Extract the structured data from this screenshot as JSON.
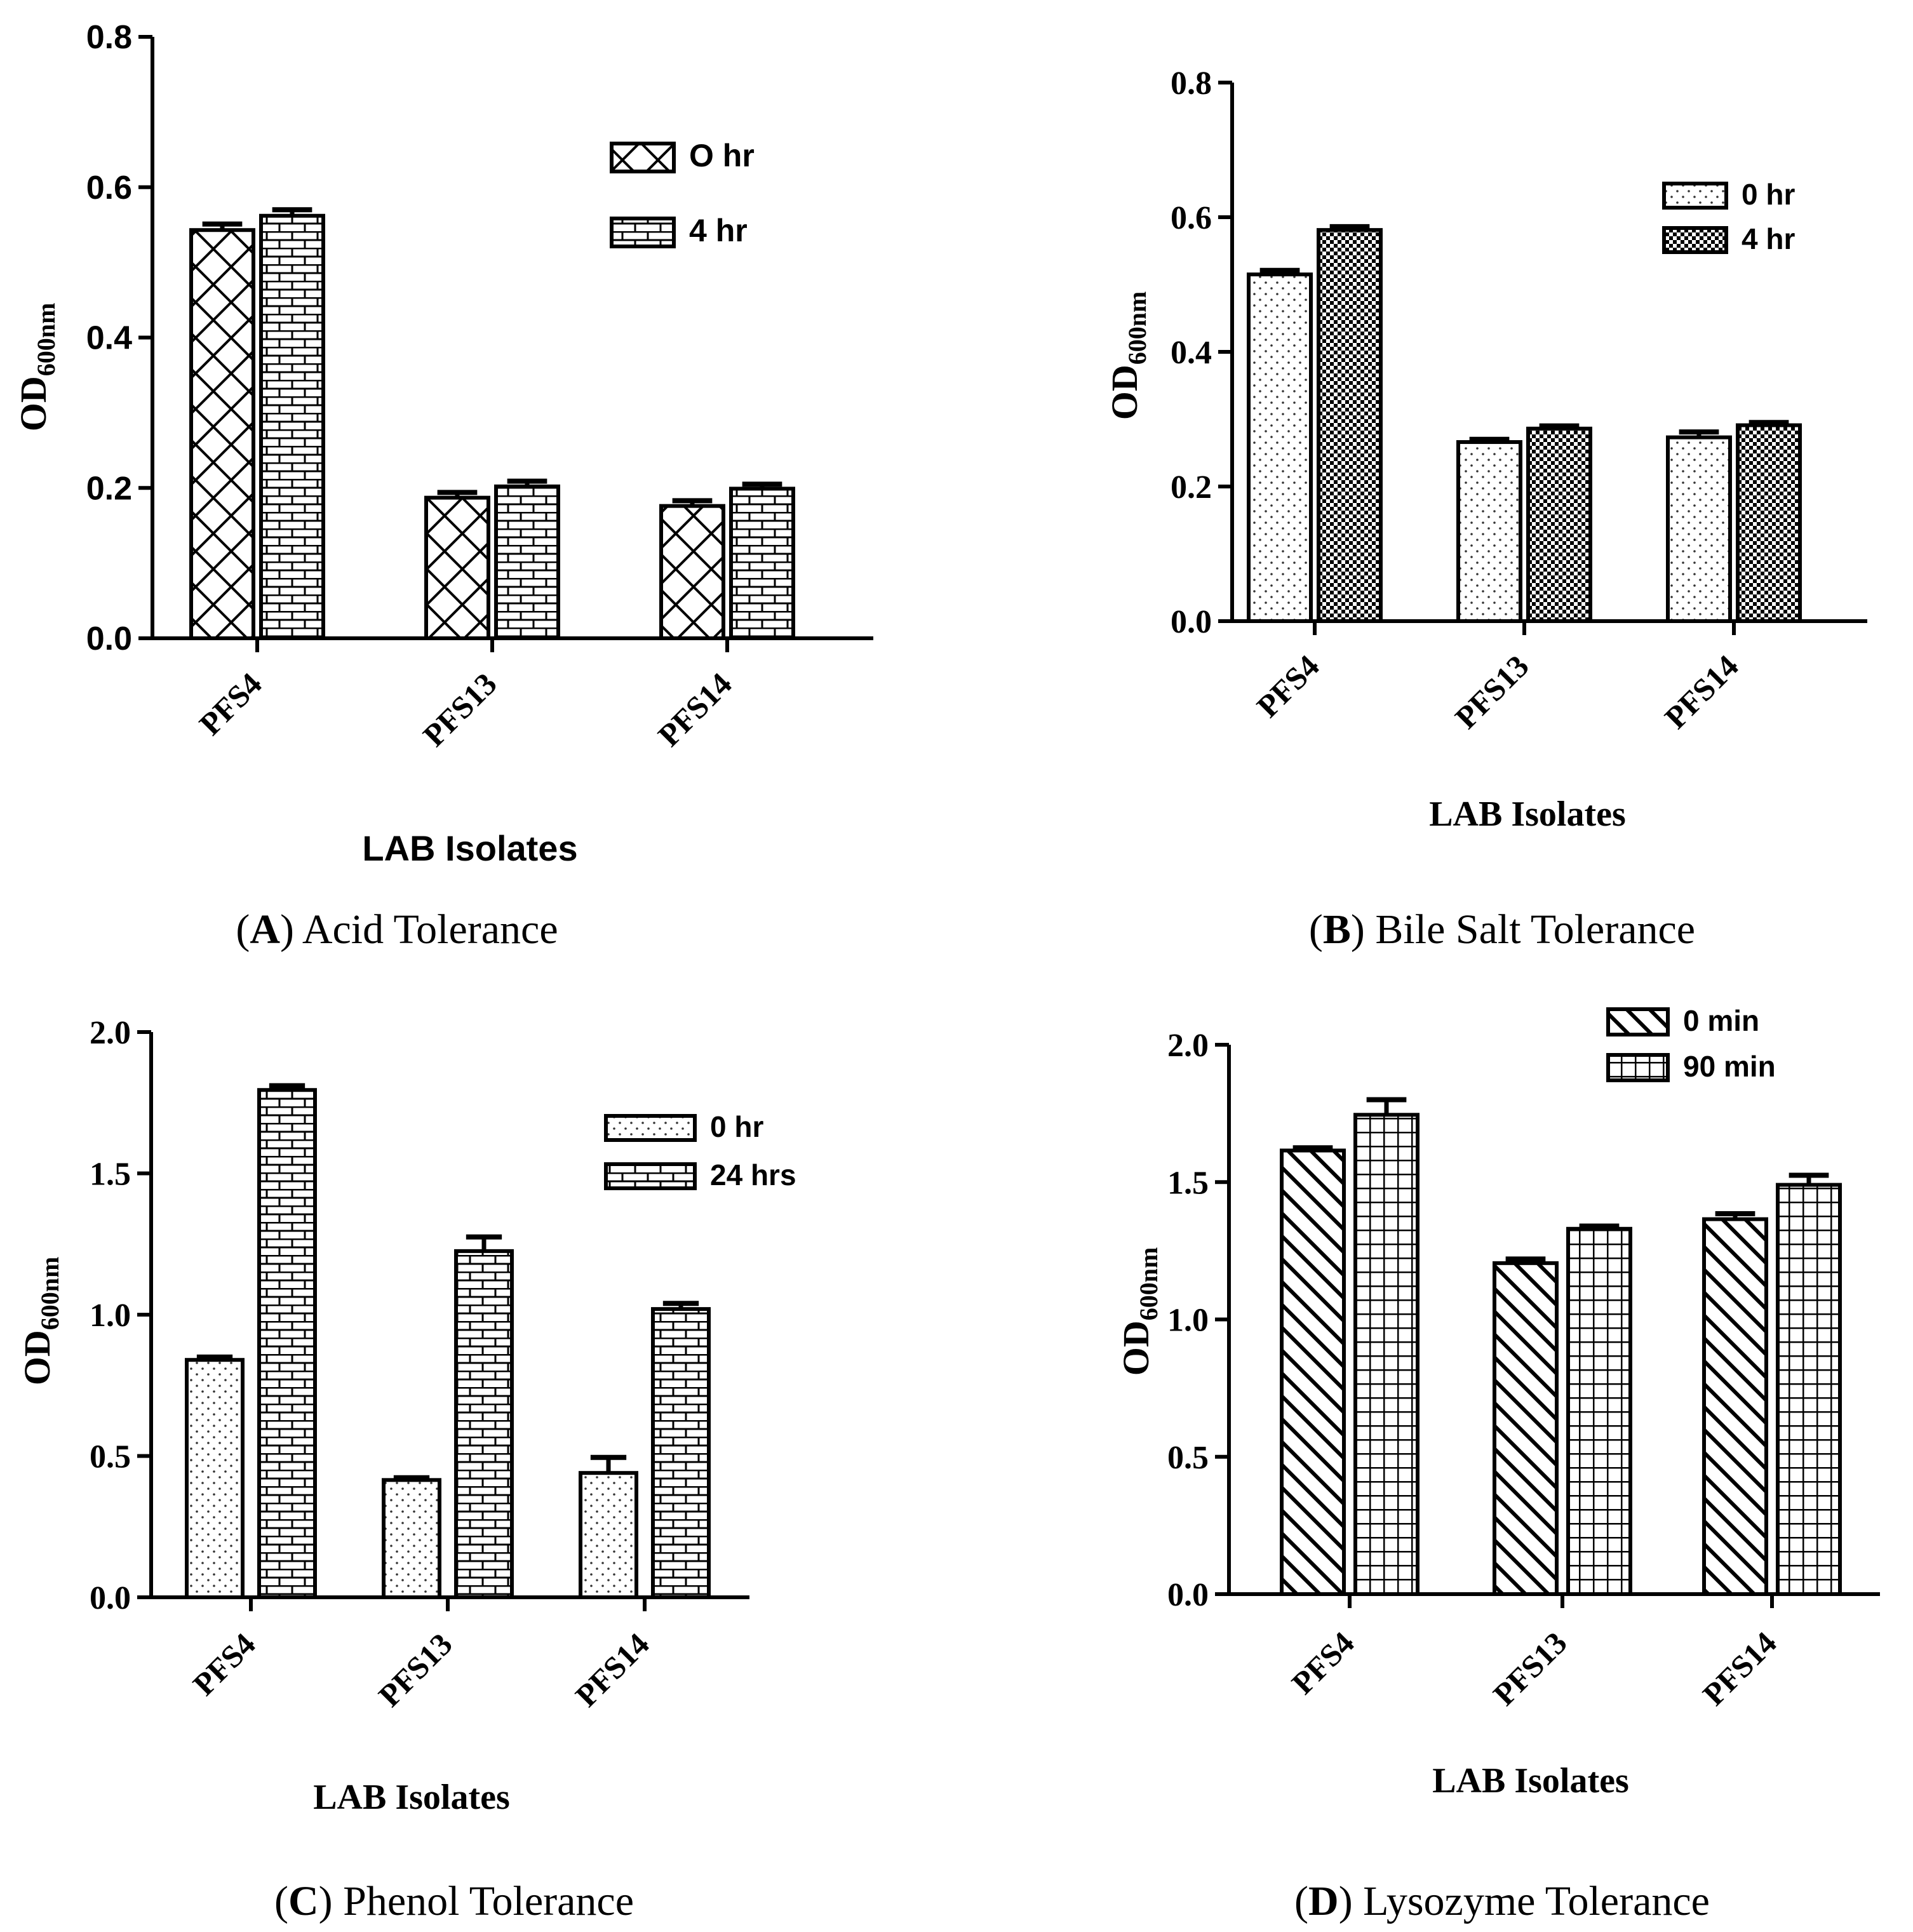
{
  "chart_data": [
    {
      "type": "bar",
      "panel": "A",
      "caption_letter": "A",
      "caption_text": "Acid Tolerance",
      "ylabel_main": "OD",
      "ylabel_sub": "600nm",
      "xlabel": "LAB Isolates",
      "ylim": [
        0,
        0.8
      ],
      "yticks": [
        0.0,
        0.2,
        0.4,
        0.6,
        0.8
      ],
      "ytick_labels": [
        "0.0",
        "0.2",
        "0.4",
        "0.6",
        "0.8"
      ],
      "categories": [
        "PFS4",
        "PFS13",
        "PFS14"
      ],
      "series": [
        {
          "name": "O hr",
          "pattern": "crosshatch",
          "values": [
            0.543,
            0.187,
            0.176
          ],
          "errors": [
            0.008,
            0.007,
            0.007
          ]
        },
        {
          "name": "4 hr",
          "pattern": "brick",
          "values": [
            0.562,
            0.202,
            0.199
          ],
          "errors": [
            0.008,
            0.007,
            0.006
          ]
        }
      ]
    },
    {
      "type": "bar",
      "panel": "B",
      "caption_letter": "B",
      "caption_text": "Bile Salt Tolerance",
      "ylabel_main": "OD",
      "ylabel_sub": "600nm",
      "xlabel": "LAB Isolates",
      "ylim": [
        0,
        0.8
      ],
      "yticks": [
        0.0,
        0.2,
        0.4,
        0.6,
        0.8
      ],
      "ytick_labels": [
        "0.0",
        "0.2",
        "0.4",
        "0.6",
        "0.8"
      ],
      "categories": [
        "PFS4",
        "PFS13",
        "PFS14"
      ],
      "series": [
        {
          "name": "0 hr",
          "pattern": "dots",
          "values": [
            0.515,
            0.266,
            0.273
          ],
          "errors": [
            0.006,
            0.004,
            0.008
          ]
        },
        {
          "name": "4 hr",
          "pattern": "checker",
          "values": [
            0.581,
            0.286,
            0.291
          ],
          "errors": [
            0.005,
            0.004,
            0.004
          ]
        }
      ]
    },
    {
      "type": "bar",
      "panel": "C",
      "caption_letter": "C",
      "caption_text": "Phenol Tolerance",
      "ylabel_main": "OD",
      "ylabel_sub": "600nm",
      "xlabel": "LAB Isolates",
      "ylim": [
        0,
        2.0
      ],
      "yticks": [
        0.0,
        0.5,
        1.0,
        1.5,
        2.0
      ],
      "ytick_labels": [
        "0.0",
        "0.5",
        "1.0",
        "1.5",
        "2.0"
      ],
      "categories": [
        "PFS4",
        "PFS13",
        "PFS14"
      ],
      "series": [
        {
          "name": "0 hr",
          "pattern": "dots",
          "values": [
            0.84,
            0.415,
            0.44
          ],
          "errors": [
            0.01,
            0.008,
            0.055
          ]
        },
        {
          "name": "24 hrs",
          "pattern": "brick",
          "values": [
            1.795,
            1.225,
            1.02
          ],
          "errors": [
            0.015,
            0.05,
            0.02
          ]
        }
      ]
    },
    {
      "type": "bar",
      "panel": "D",
      "caption_letter": "D",
      "caption_text": "Lysozyme Tolerance",
      "ylabel_main": "OD",
      "ylabel_sub": "600nm",
      "xlabel": "LAB Isolates",
      "ylim": [
        0,
        2.0
      ],
      "yticks": [
        0.0,
        0.5,
        1.0,
        1.5,
        2.0
      ],
      "ytick_labels": [
        "0.0",
        "0.5",
        "1.0",
        "1.5",
        "2.0"
      ],
      "categories": [
        "PFS4",
        "PFS13",
        "PFS14"
      ],
      "series": [
        {
          "name": "0 min",
          "pattern": "diagonal",
          "values": [
            1.615,
            1.205,
            1.365
          ],
          "errors": [
            0.01,
            0.015,
            0.02
          ]
        },
        {
          "name": "90 min",
          "pattern": "grid",
          "values": [
            1.745,
            1.33,
            1.49
          ],
          "errors": [
            0.055,
            0.01,
            0.035
          ]
        }
      ]
    }
  ]
}
